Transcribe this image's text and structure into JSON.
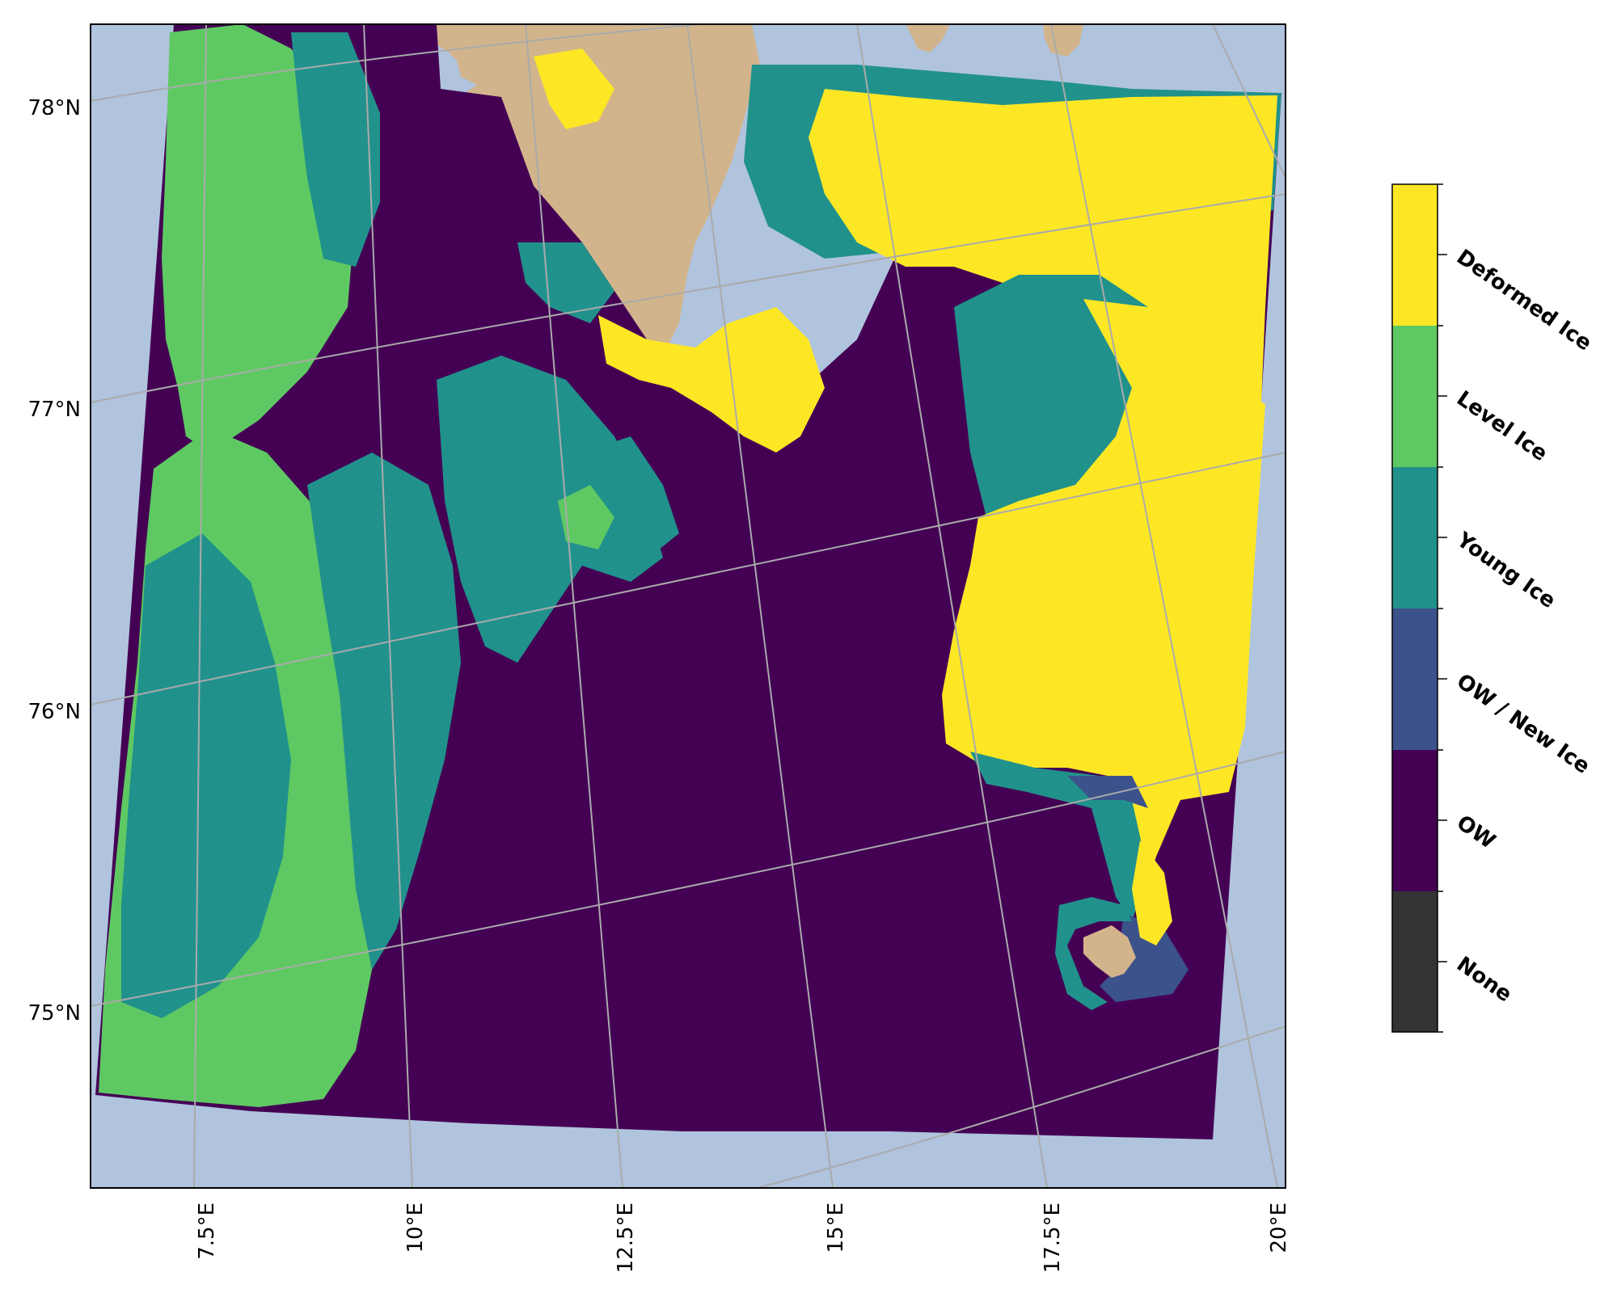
{
  "map": {
    "colors": {
      "land": "#d2b48c",
      "ocean": "#b0c4de",
      "gridline": "#aaaaaa",
      "ow": "#440154",
      "ow_new_ice": "#3b528b",
      "young_ice": "#21918c",
      "level_ice": "#5ec962",
      "deformed_ice": "#fde725",
      "none": "#333333"
    },
    "lat_labels": [
      "78°N",
      "77°N",
      "76°N",
      "75°N"
    ],
    "lon_labels": [
      "7.5°E",
      "10°E",
      "12.5°E",
      "15°E",
      "17.5°E",
      "20°E"
    ]
  },
  "colorbar": {
    "classes": [
      {
        "label": "Deformed Ice",
        "color": "#fde725"
      },
      {
        "label": "Level Ice",
        "color": "#5ec962"
      },
      {
        "label": "Young Ice",
        "color": "#21918c"
      },
      {
        "label": "OW / New Ice",
        "color": "#3b528b"
      },
      {
        "label": "OW",
        "color": "#440154"
      },
      {
        "label": "None",
        "color": "#333333"
      }
    ]
  }
}
